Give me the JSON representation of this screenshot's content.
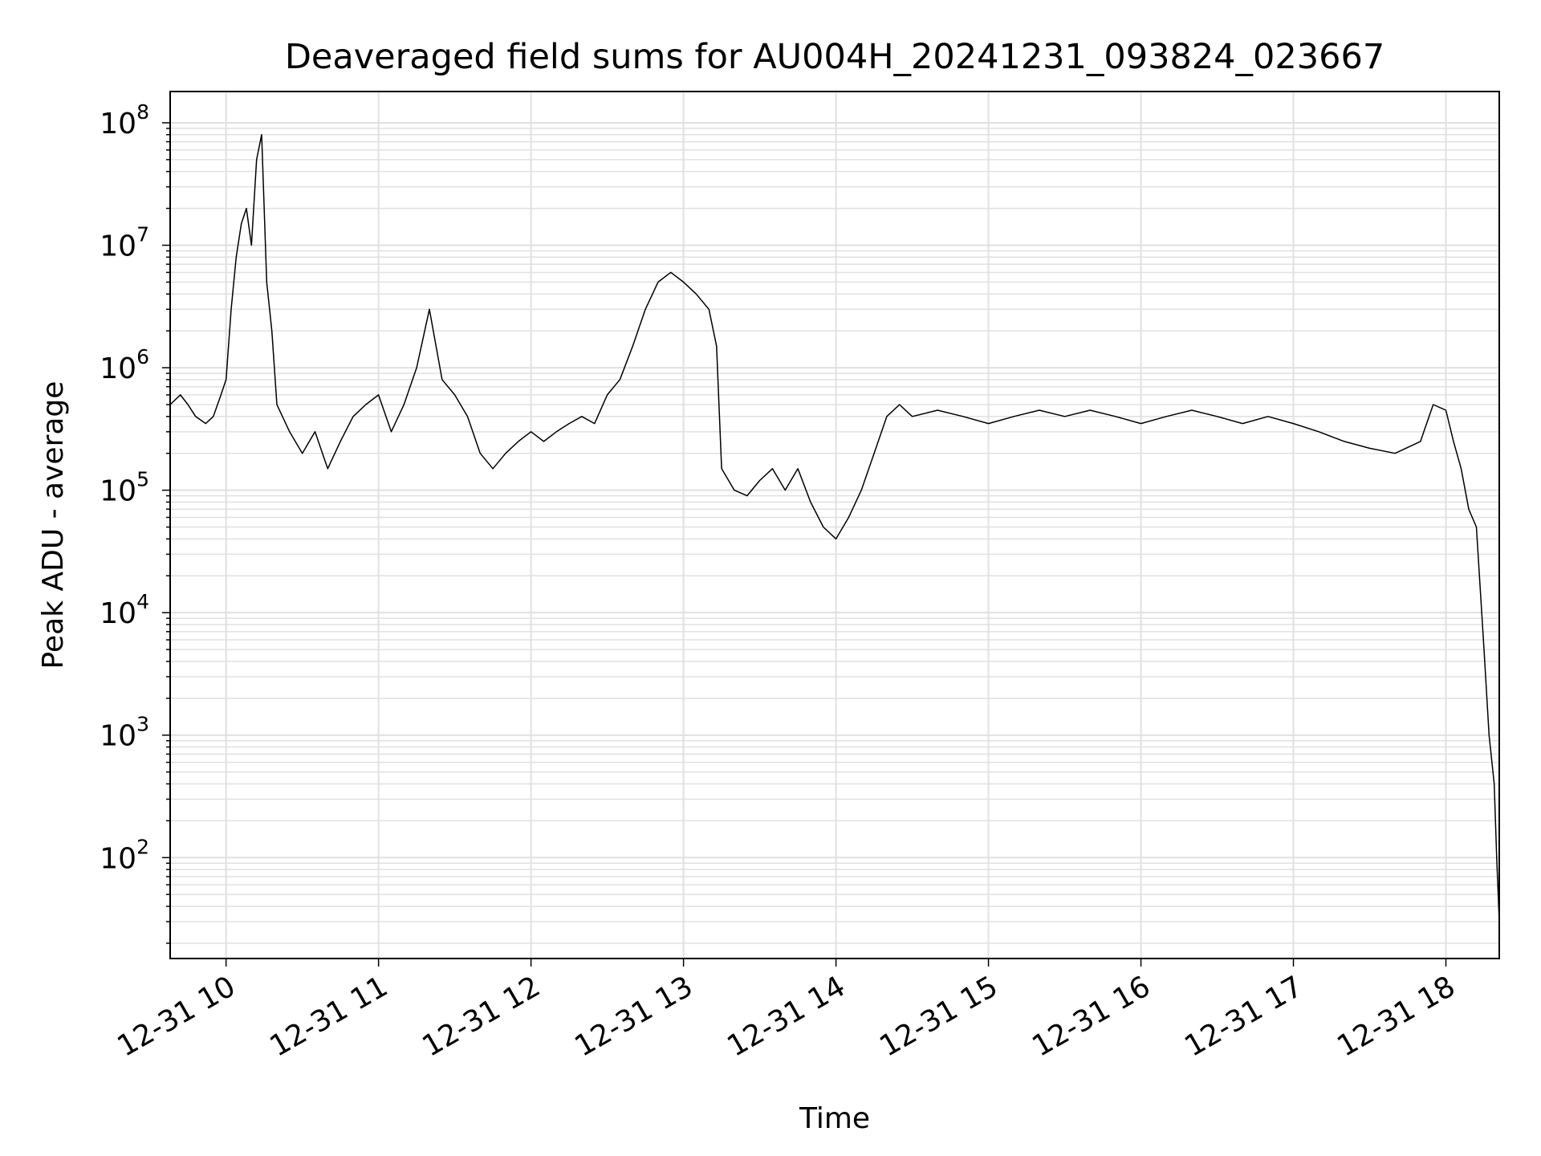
{
  "chart_data": {
    "type": "line",
    "title": "Deaveraged field sums for AU004H_20241231_093824_023667",
    "xlabel": "Time",
    "ylabel": "Peak ADU - average",
    "yscale": "log",
    "grid": true,
    "line_color": "#000000",
    "grid_color": "#e0e0e0",
    "x_range": [
      "2024-12-31 09:38",
      "2024-12-31 18:21"
    ],
    "ylim": [
      15,
      180000000
    ],
    "x_ticks": [
      {
        "time": "2024-12-31 10:00",
        "label": "12-31 10"
      },
      {
        "time": "2024-12-31 11:00",
        "label": "12-31 11"
      },
      {
        "time": "2024-12-31 12:00",
        "label": "12-31 12"
      },
      {
        "time": "2024-12-31 13:00",
        "label": "12-31 13"
      },
      {
        "time": "2024-12-31 14:00",
        "label": "12-31 14"
      },
      {
        "time": "2024-12-31 15:00",
        "label": "12-31 15"
      },
      {
        "time": "2024-12-31 16:00",
        "label": "12-31 16"
      },
      {
        "time": "2024-12-31 17:00",
        "label": "12-31 17"
      },
      {
        "time": "2024-12-31 18:00",
        "label": "12-31 18"
      }
    ],
    "y_ticks": [
      {
        "value": 100,
        "base": "10",
        "exp": "2"
      },
      {
        "value": 1000,
        "base": "10",
        "exp": "3"
      },
      {
        "value": 10000,
        "base": "10",
        "exp": "4"
      },
      {
        "value": 100000,
        "base": "10",
        "exp": "5"
      },
      {
        "value": 1000000,
        "base": "10",
        "exp": "6"
      },
      {
        "value": 10000000,
        "base": "10",
        "exp": "7"
      },
      {
        "value": 100000000,
        "base": "10",
        "exp": "8"
      }
    ],
    "series": [
      {
        "data": [
          [
            "2024-12-31 09:38",
            500000
          ],
          [
            "2024-12-31 09:42",
            600000
          ],
          [
            "2024-12-31 09:45",
            500000
          ],
          [
            "2024-12-31 09:48",
            400000
          ],
          [
            "2024-12-31 09:52",
            350000
          ],
          [
            "2024-12-31 09:55",
            400000
          ],
          [
            "2024-12-31 09:58",
            600000
          ],
          [
            "2024-12-31 10:00",
            800000
          ],
          [
            "2024-12-31 10:02",
            3000000
          ],
          [
            "2024-12-31 10:04",
            8000000
          ],
          [
            "2024-12-31 10:06",
            15000000
          ],
          [
            "2024-12-31 10:08",
            20000000
          ],
          [
            "2024-12-31 10:10",
            10000000
          ],
          [
            "2024-12-31 10:12",
            50000000
          ],
          [
            "2024-12-31 10:14",
            80000000
          ],
          [
            "2024-12-31 10:16",
            5000000
          ],
          [
            "2024-12-31 10:18",
            2000000
          ],
          [
            "2024-12-31 10:20",
            500000
          ],
          [
            "2024-12-31 10:25",
            300000
          ],
          [
            "2024-12-31 10:30",
            200000
          ],
          [
            "2024-12-31 10:35",
            300000
          ],
          [
            "2024-12-31 10:40",
            150000
          ],
          [
            "2024-12-31 10:45",
            250000
          ],
          [
            "2024-12-31 10:50",
            400000
          ],
          [
            "2024-12-31 10:55",
            500000
          ],
          [
            "2024-12-31 11:00",
            600000
          ],
          [
            "2024-12-31 11:05",
            300000
          ],
          [
            "2024-12-31 11:10",
            500000
          ],
          [
            "2024-12-31 11:15",
            1000000
          ],
          [
            "2024-12-31 11:20",
            3000000
          ],
          [
            "2024-12-31 11:25",
            800000
          ],
          [
            "2024-12-31 11:30",
            600000
          ],
          [
            "2024-12-31 11:35",
            400000
          ],
          [
            "2024-12-31 11:40",
            200000
          ],
          [
            "2024-12-31 11:45",
            150000
          ],
          [
            "2024-12-31 11:50",
            200000
          ],
          [
            "2024-12-31 11:55",
            250000
          ],
          [
            "2024-12-31 12:00",
            300000
          ],
          [
            "2024-12-31 12:05",
            250000
          ],
          [
            "2024-12-31 12:10",
            300000
          ],
          [
            "2024-12-31 12:15",
            350000
          ],
          [
            "2024-12-31 12:20",
            400000
          ],
          [
            "2024-12-31 12:25",
            350000
          ],
          [
            "2024-12-31 12:30",
            600000
          ],
          [
            "2024-12-31 12:35",
            800000
          ],
          [
            "2024-12-31 12:40",
            1500000
          ],
          [
            "2024-12-31 12:45",
            3000000
          ],
          [
            "2024-12-31 12:50",
            5000000
          ],
          [
            "2024-12-31 12:55",
            6000000
          ],
          [
            "2024-12-31 13:00",
            5000000
          ],
          [
            "2024-12-31 13:05",
            4000000
          ],
          [
            "2024-12-31 13:10",
            3000000
          ],
          [
            "2024-12-31 13:13",
            1500000
          ],
          [
            "2024-12-31 13:15",
            150000
          ],
          [
            "2024-12-31 13:20",
            100000
          ],
          [
            "2024-12-31 13:25",
            90000
          ],
          [
            "2024-12-31 13:30",
            120000
          ],
          [
            "2024-12-31 13:35",
            150000
          ],
          [
            "2024-12-31 13:40",
            100000
          ],
          [
            "2024-12-31 13:45",
            150000
          ],
          [
            "2024-12-31 13:50",
            80000
          ],
          [
            "2024-12-31 13:55",
            50000
          ],
          [
            "2024-12-31 14:00",
            40000
          ],
          [
            "2024-12-31 14:05",
            60000
          ],
          [
            "2024-12-31 14:10",
            100000
          ],
          [
            "2024-12-31 14:15",
            200000
          ],
          [
            "2024-12-31 14:20",
            400000
          ],
          [
            "2024-12-31 14:25",
            500000
          ],
          [
            "2024-12-31 14:30",
            400000
          ],
          [
            "2024-12-31 14:40",
            450000
          ],
          [
            "2024-12-31 14:50",
            400000
          ],
          [
            "2024-12-31 15:00",
            350000
          ],
          [
            "2024-12-31 15:10",
            400000
          ],
          [
            "2024-12-31 15:20",
            450000
          ],
          [
            "2024-12-31 15:30",
            400000
          ],
          [
            "2024-12-31 15:40",
            450000
          ],
          [
            "2024-12-31 15:50",
            400000
          ],
          [
            "2024-12-31 16:00",
            350000
          ],
          [
            "2024-12-31 16:10",
            400000
          ],
          [
            "2024-12-31 16:20",
            450000
          ],
          [
            "2024-12-31 16:30",
            400000
          ],
          [
            "2024-12-31 16:40",
            350000
          ],
          [
            "2024-12-31 16:50",
            400000
          ],
          [
            "2024-12-31 17:00",
            350000
          ],
          [
            "2024-12-31 17:10",
            300000
          ],
          [
            "2024-12-31 17:20",
            250000
          ],
          [
            "2024-12-31 17:30",
            220000
          ],
          [
            "2024-12-31 17:40",
            200000
          ],
          [
            "2024-12-31 17:50",
            250000
          ],
          [
            "2024-12-31 17:55",
            500000
          ],
          [
            "2024-12-31 18:00",
            450000
          ],
          [
            "2024-12-31 18:03",
            250000
          ],
          [
            "2024-12-31 18:06",
            150000
          ],
          [
            "2024-12-31 18:09",
            70000
          ],
          [
            "2024-12-31 18:12",
            50000
          ],
          [
            "2024-12-31 18:15",
            5000
          ],
          [
            "2024-12-31 18:17",
            1000
          ],
          [
            "2024-12-31 18:19",
            400
          ],
          [
            "2024-12-31 18:20",
            100
          ],
          [
            "2024-12-31 18:21",
            30
          ]
        ]
      }
    ]
  }
}
